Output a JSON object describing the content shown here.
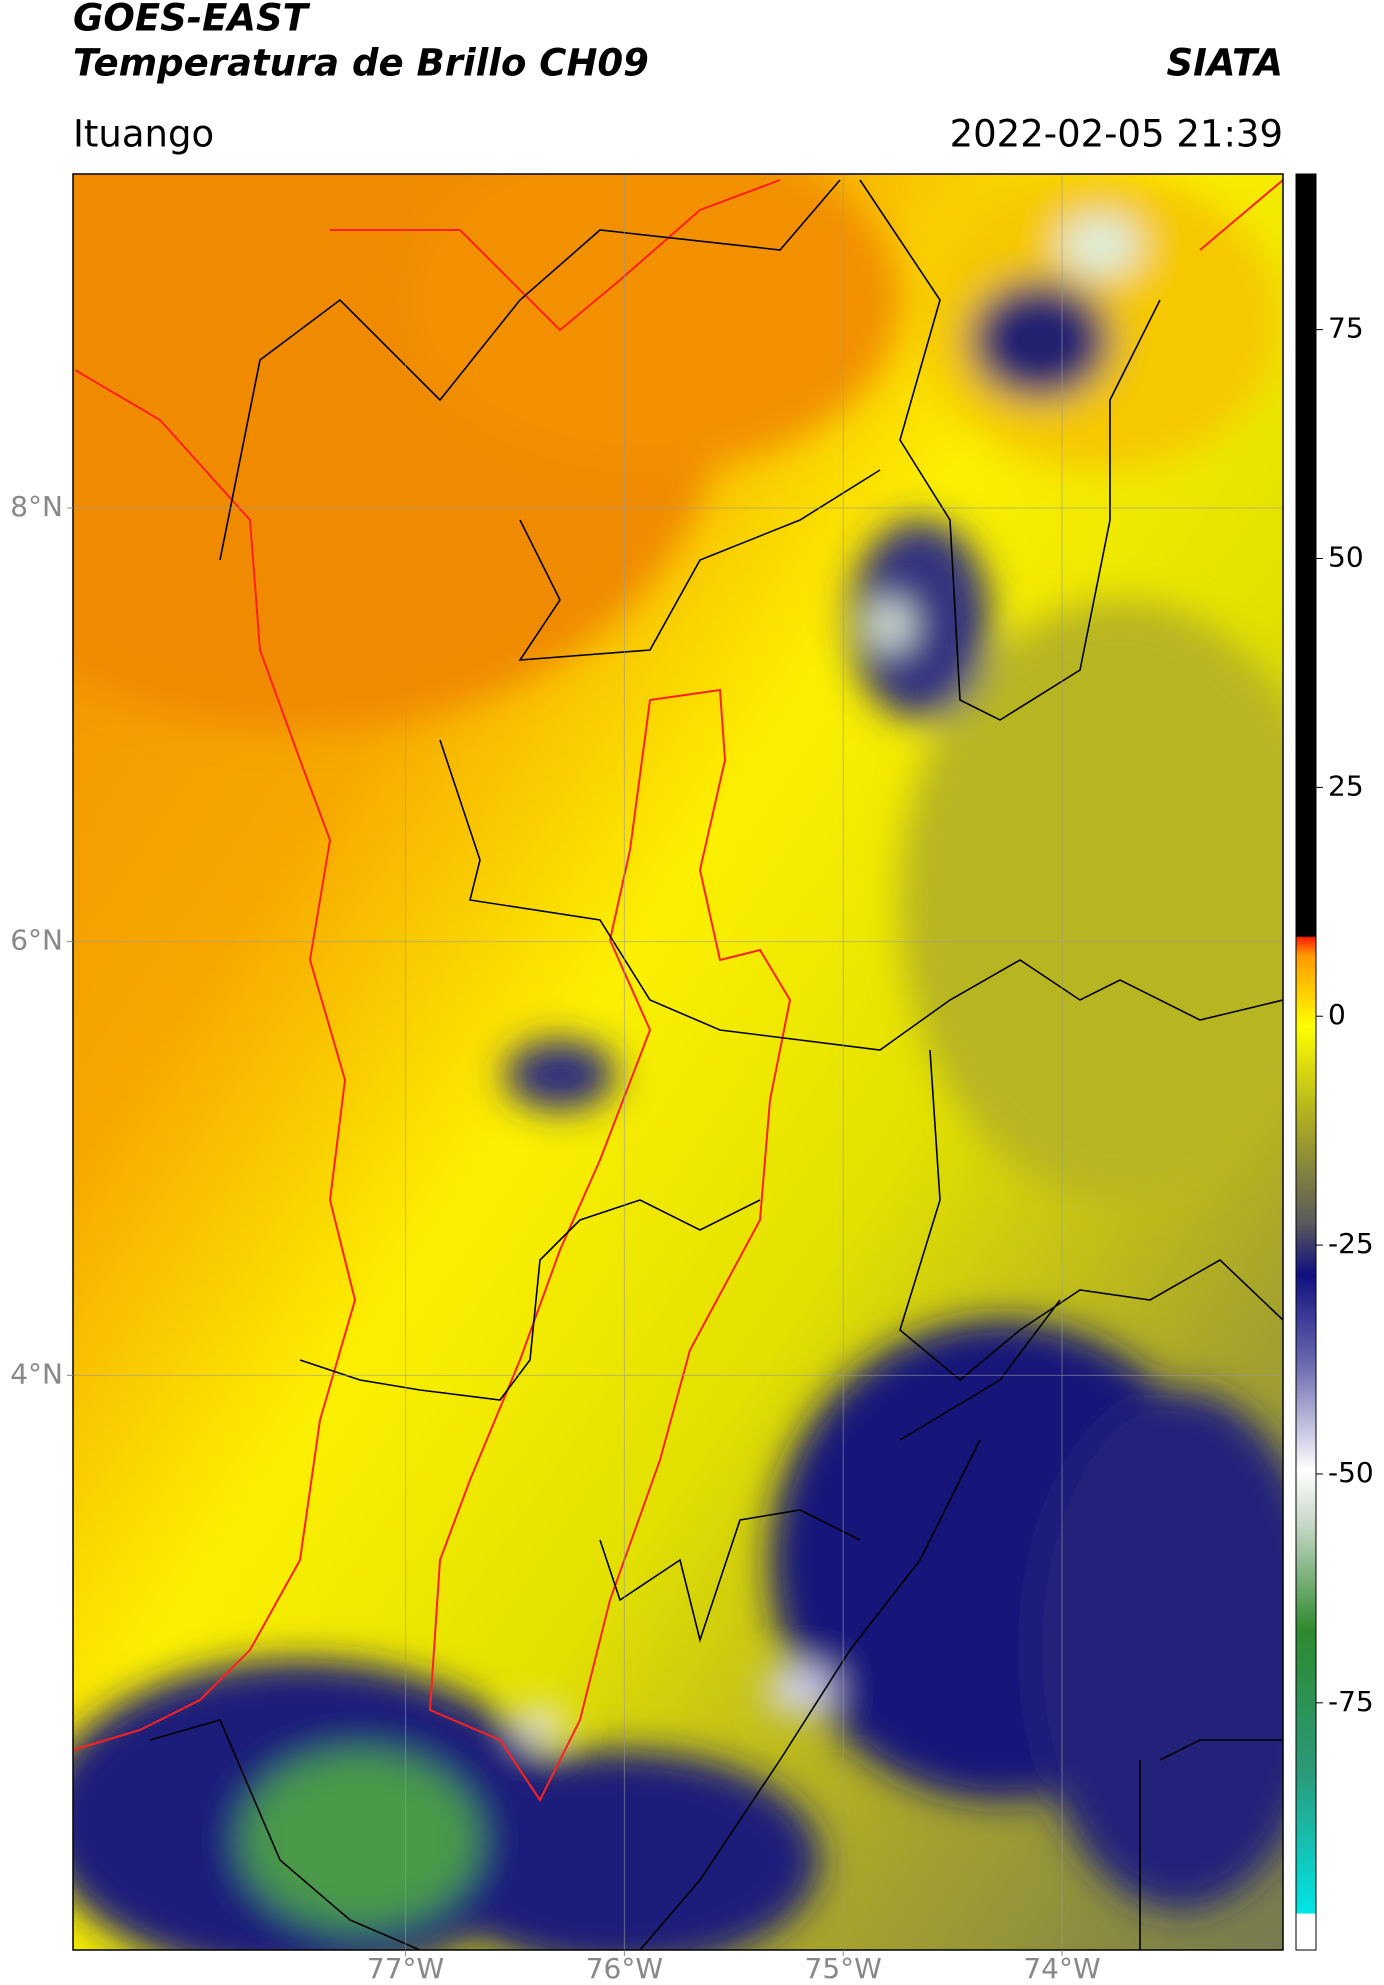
{
  "chart_data": {
    "type": "map",
    "title": "GOES-EAST",
    "subtitle": "Temperatura de Brillo CH09",
    "source": "SIATA",
    "location": "Ituango",
    "timestamp": "2022-02-05 21:39",
    "xlim": [
      -78.52,
      -72.99
    ],
    "xticks": [
      {
        "value": -77,
        "label": "77°W"
      },
      {
        "value": -76,
        "label": "76°W"
      },
      {
        "value": -75,
        "label": "75°W"
      },
      {
        "value": -74,
        "label": "74°W"
      }
    ],
    "ylim": [
      1.35,
      9.54
    ],
    "yticks": [
      {
        "value": 8,
        "label": "8°N"
      },
      {
        "value": 6,
        "label": "6°N"
      },
      {
        "value": 4,
        "label": "4°N"
      }
    ],
    "grid": true,
    "colorbar": {
      "lim": [
        -102,
        92
      ],
      "ticks": [
        75,
        50,
        25,
        0,
        -25,
        -50,
        -75
      ]
    }
  }
}
